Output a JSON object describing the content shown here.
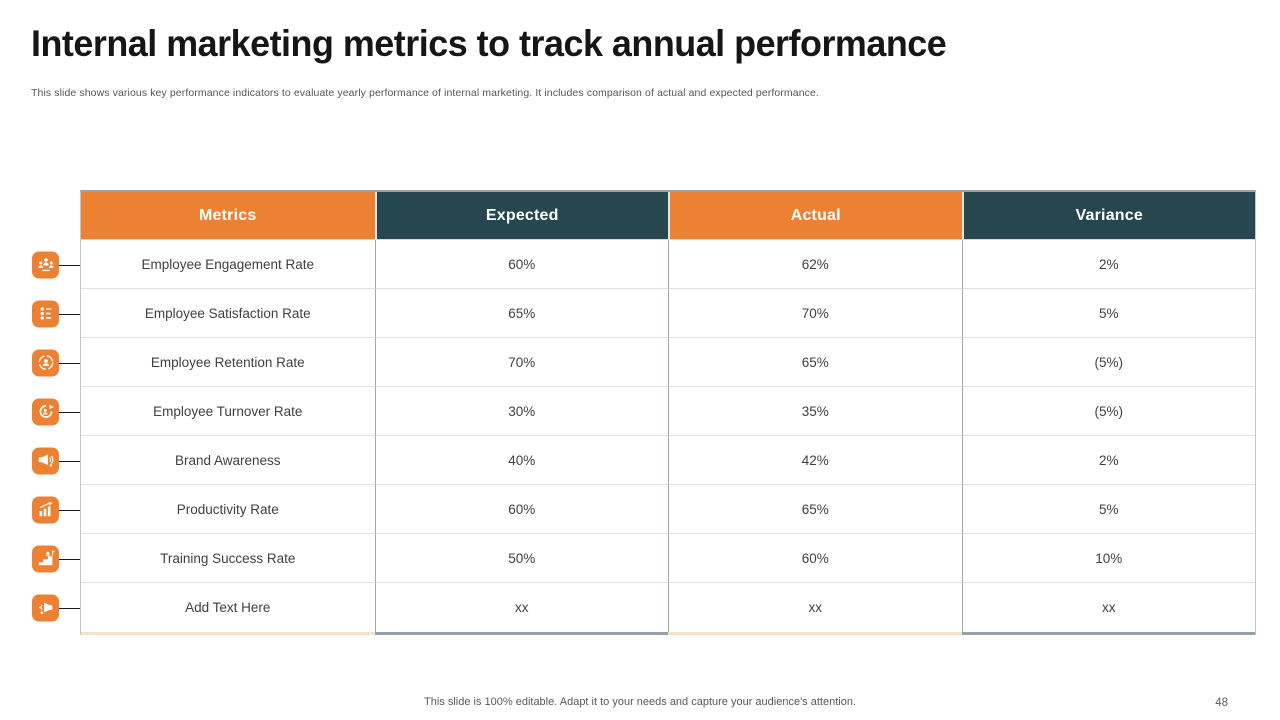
{
  "slide": {
    "title": "Internal marketing metrics to track annual performance",
    "subtitle": "This slide shows various key performance indicators to evaluate yearly performance of internal marketing. It includes comparison of actual and expected performance.",
    "footer_note": "This slide is 100% editable. Adapt it to your needs and capture your audience's attention.",
    "page_number": "48"
  },
  "colors": {
    "accent_orange": "#ED8133",
    "accent_teal": "#26474F",
    "muted_orange_border": "#F3E4C9",
    "muted_teal_border": "#93A1A8",
    "header_text": "#FFFFFF",
    "body_text": "#404040",
    "connector_black": "#1A1A1A"
  },
  "table": {
    "columns": [
      {
        "label": "Metrics",
        "header_bg": "#ED8133"
      },
      {
        "label": "Expected",
        "header_bg": "#26474F"
      },
      {
        "label": "Actual",
        "header_bg": "#ED8133"
      },
      {
        "label": "Variance",
        "header_bg": "#26474F"
      }
    ],
    "rows": [
      {
        "icon": "team-engagement-icon",
        "metric": "Employee Engagement Rate",
        "expected": "60%",
        "actual": "62%",
        "variance": "2%"
      },
      {
        "icon": "satisfaction-survey-icon",
        "metric": "Employee Satisfaction Rate",
        "expected": "65%",
        "actual": "70%",
        "variance": "5%"
      },
      {
        "icon": "employee-retention-icon",
        "metric": "Employee Retention Rate",
        "expected": "70%",
        "actual": "65%",
        "variance": "(5%)"
      },
      {
        "icon": "employee-turnover-icon",
        "metric": "Employee Turnover Rate",
        "expected": "30%",
        "actual": "35%",
        "variance": "(5%)"
      },
      {
        "icon": "brand-awareness-megaphone-icon",
        "metric": "Brand Awareness",
        "expected": "40%",
        "actual": "42%",
        "variance": "2%"
      },
      {
        "icon": "productivity-growth-icon",
        "metric": "Productivity Rate",
        "expected": "60%",
        "actual": "65%",
        "variance": "5%"
      },
      {
        "icon": "training-success-icon",
        "metric": "Training Success Rate",
        "expected": "50%",
        "actual": "60%",
        "variance": "10%"
      },
      {
        "icon": "announcement-icon",
        "metric": "Add Text Here",
        "expected": "xx",
        "actual": "xx",
        "variance": "xx"
      }
    ]
  }
}
